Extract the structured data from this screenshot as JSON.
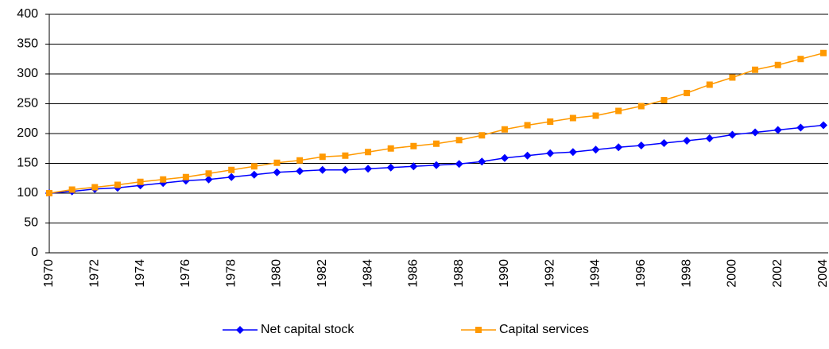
{
  "chart_data": {
    "type": "line",
    "categories": [
      "1970",
      null,
      "1972",
      null,
      "1974",
      null,
      "1976",
      null,
      "1978",
      null,
      "1980",
      null,
      "1982",
      null,
      "1984",
      null,
      "1986",
      null,
      "1988",
      null,
      "1990",
      null,
      "1992",
      null,
      "1994",
      null,
      "1996",
      null,
      "1998",
      null,
      "2000",
      null,
      "2002",
      null,
      "2004"
    ],
    "series": [
      {
        "name": "Net capital stock",
        "color": "#0000ff",
        "marker": "diamond",
        "values": [
          100,
          103,
          107,
          109,
          113,
          117,
          121,
          123,
          127,
          131,
          135,
          137,
          139,
          139,
          141,
          143,
          145,
          147,
          149,
          153,
          159,
          163,
          167,
          169,
          173,
          177,
          180,
          184,
          188,
          192,
          198,
          202,
          206,
          210,
          214
        ]
      },
      {
        "name": "Capital services",
        "color": "#ff9900",
        "marker": "square",
        "values": [
          100,
          106,
          110,
          114,
          119,
          123,
          127,
          133,
          139,
          145,
          151,
          155,
          161,
          163,
          169,
          175,
          179,
          183,
          189,
          197,
          207,
          214,
          220,
          226,
          230,
          238,
          246,
          256,
          268,
          282,
          294,
          307,
          315,
          325,
          335
        ]
      }
    ],
    "ylim": [
      0,
      400
    ],
    "yticks": [
      0,
      50,
      100,
      150,
      200,
      250,
      300,
      350,
      400
    ],
    "grid": true,
    "legend": "bottom"
  }
}
